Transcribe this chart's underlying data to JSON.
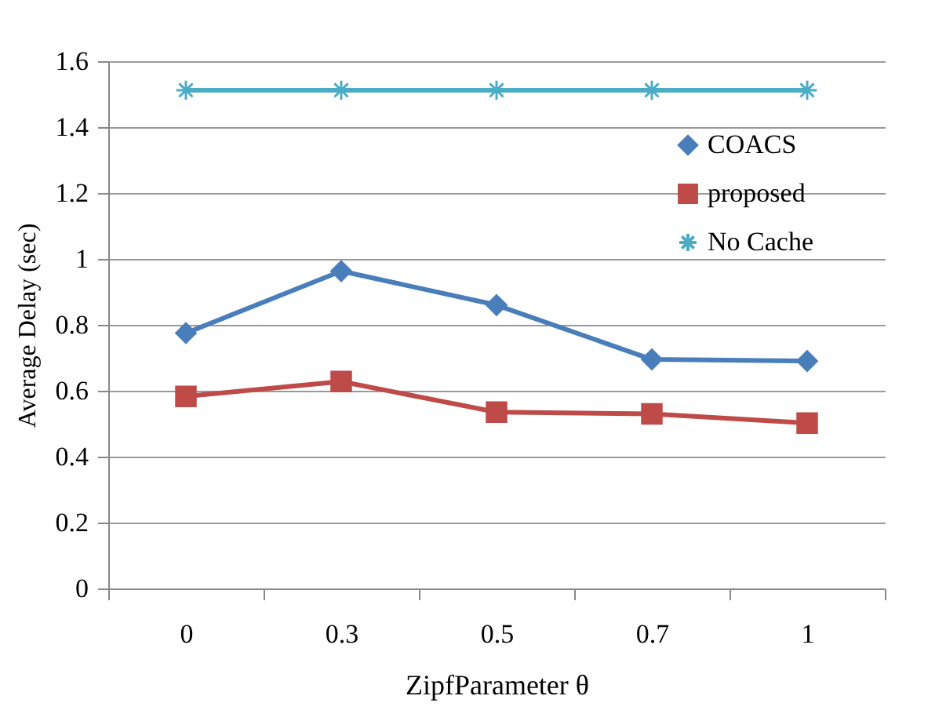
{
  "chart_data": {
    "type": "line",
    "xlabel": "ZipfParameter θ",
    "ylabel": "Average Delay (sec)",
    "categories": [
      "0",
      "0.3",
      "0.5",
      "0.7",
      "1"
    ],
    "series": [
      {
        "name": "COACS",
        "color": "#4a7ebb",
        "marker": "diamond",
        "values": [
          0.775,
          0.963,
          0.86,
          0.695,
          0.69
        ]
      },
      {
        "name": "proposed",
        "color": "#be4b48",
        "marker": "square",
        "values": [
          0.583,
          0.628,
          0.535,
          0.53,
          0.502
        ]
      },
      {
        "name": "No Cache",
        "color": "#4bacc6",
        "marker": "cross",
        "values": [
          1.512,
          1.512,
          1.512,
          1.512,
          1.512
        ]
      }
    ],
    "ylim": [
      0,
      1.6
    ],
    "yticks": [
      0,
      0.2,
      0.4,
      0.6,
      0.8,
      1,
      1.2,
      1.4,
      1.6
    ],
    "grid": "y",
    "legend": "top right",
    "line_style": "solid"
  }
}
